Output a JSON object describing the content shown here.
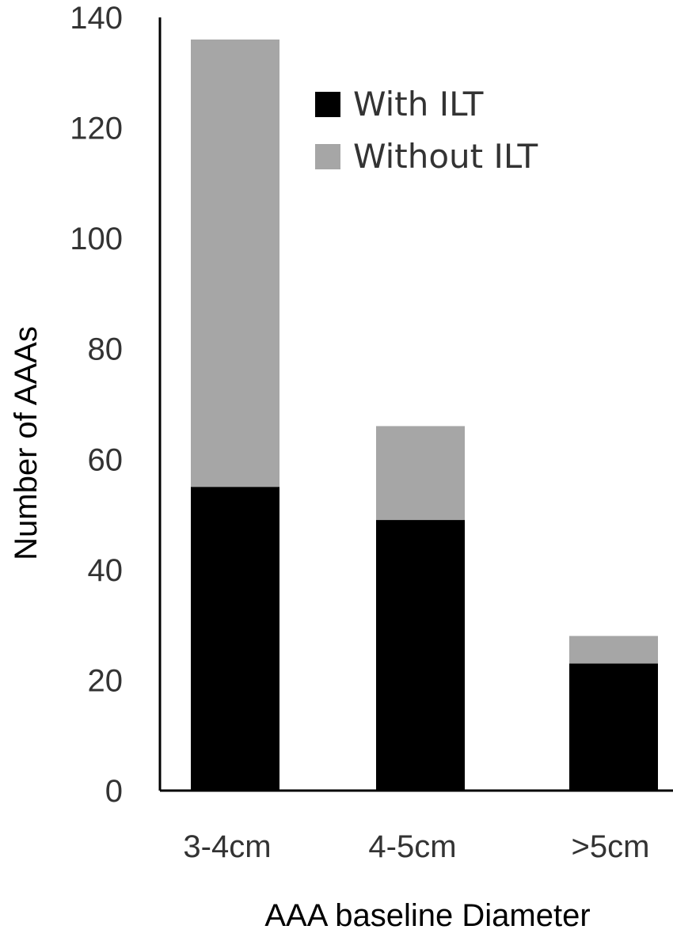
{
  "chart_data": {
    "type": "bar",
    "stacked": true,
    "categories": [
      "3-4cm",
      "4-5cm",
      ">5cm"
    ],
    "series": [
      {
        "name": "With ILT",
        "values": [
          55,
          49,
          23
        ],
        "color": "#000000"
      },
      {
        "name": "Without ILT",
        "values": [
          81,
          17,
          5
        ],
        "color": "#a6a6a6"
      }
    ],
    "xlabel": "AAA baseline Diameter",
    "ylabel": "Number of AAAs",
    "ylim": [
      0,
      140
    ],
    "yticks": [
      "0",
      "20",
      "40",
      "60",
      "80",
      "100",
      "120",
      "140"
    ],
    "grid": false,
    "legend_position": "top-right"
  }
}
